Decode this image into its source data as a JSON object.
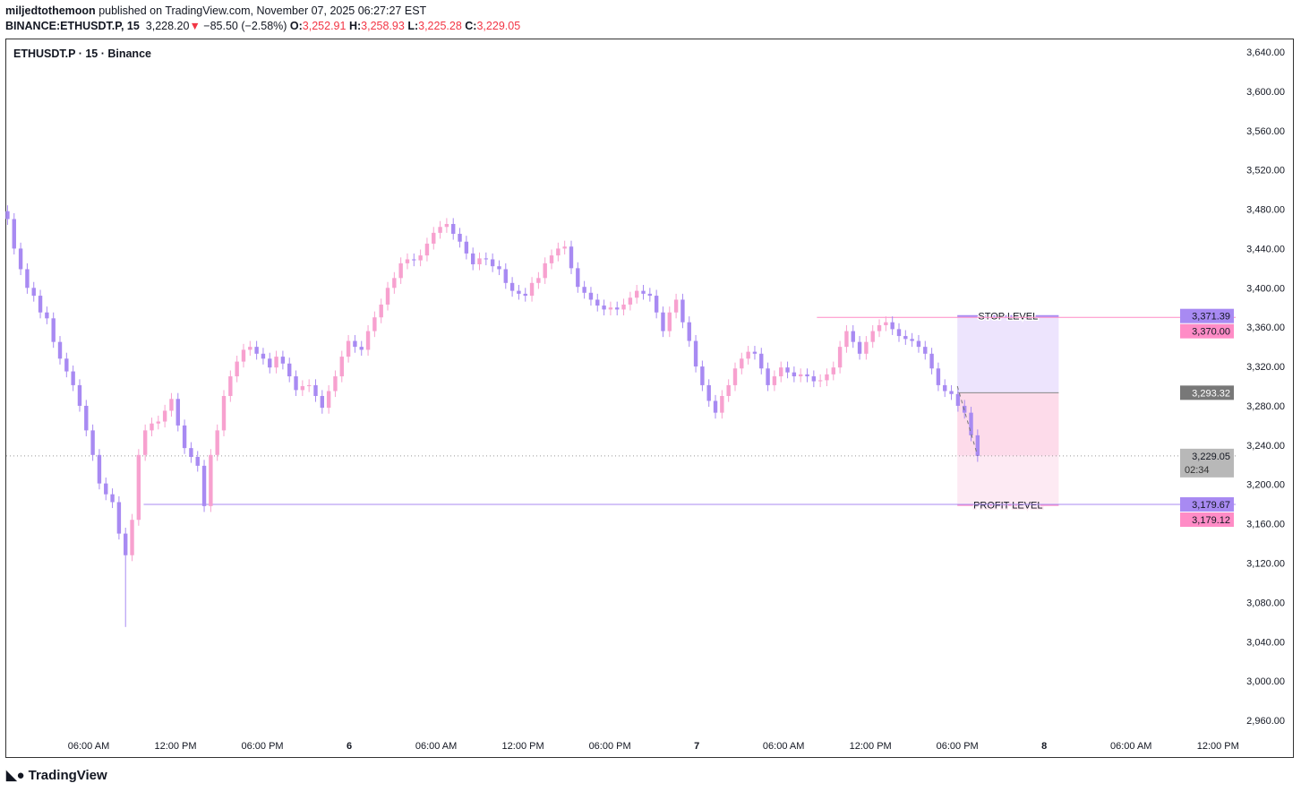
{
  "header": {
    "author": "miljedtothemoon",
    "published": "published on TradingView.com, November 07, 2025 06:27:27 EST",
    "symbol_full": "BINANCE:ETHUSDT.P, 15",
    "last": "3,228.20",
    "change": "−85.50 (−2.58%)",
    "o_label": "O:",
    "o": "3,252.91",
    "h_label": "H:",
    "h": "3,258.93",
    "l_label": "L:",
    "l": "3,225.28",
    "c_label": "C:",
    "c": "3,229.05"
  },
  "legend": "ETHUSDT.P · 15 · Binance",
  "brand": "TradingView",
  "colors": {
    "up": "#f7a1cf",
    "down": "#a88af2",
    "stop": "#ff8cc6",
    "target": "#a88af2"
  },
  "chart_data": {
    "type": "candlestick",
    "ylim": [
      2940,
      3660
    ],
    "y_ticks": [
      "3,640.00",
      "3,600.00",
      "3,560.00",
      "3,520.00",
      "3,480.00",
      "3,440.00",
      "3,400.00",
      "3,360.00",
      "3,320.00",
      "3,280.00",
      "3,240.00",
      "3,200.00",
      "3,160.00",
      "3,120.00",
      "3,080.00",
      "3,040.00",
      "3,000.00",
      "2,960.00"
    ],
    "x_ticks": [
      {
        "h": 0,
        "label": "06:00 AM"
      },
      {
        "h": 6,
        "label": "12:00 PM"
      },
      {
        "h": 12,
        "label": "06:00 PM"
      },
      {
        "h": 18,
        "label": "6"
      },
      {
        "h": 24,
        "label": "06:00 AM"
      },
      {
        "h": 30,
        "label": "12:00 PM"
      },
      {
        "h": 36,
        "label": "06:00 PM"
      },
      {
        "h": 42,
        "label": "7"
      },
      {
        "h": 48,
        "label": "06:00 AM"
      },
      {
        "h": 54,
        "label": "12:00 PM"
      },
      {
        "h": 60,
        "label": "06:00 PM"
      },
      {
        "h": 66,
        "label": "8"
      },
      {
        "h": 72,
        "label": "06:00 AM"
      },
      {
        "h": 78,
        "label": "12:00 PM"
      }
    ],
    "start_hour": -5.6,
    "end_hour": 61.4,
    "closes": [
      3470,
      3440,
      3419,
      3400,
      3392,
      3375,
      3369,
      3345,
      3328,
      3315,
      3301,
      3280,
      3255,
      3230,
      3201,
      3190,
      3182,
      3150,
      3128,
      3164,
      3230,
      3255,
      3262,
      3264,
      3275,
      3287,
      3260,
      3237,
      3228,
      3219,
      3178,
      3230,
      3255,
      3290,
      3310,
      3325,
      3337,
      3340,
      3333,
      3328,
      3319,
      3330,
      3323,
      3310,
      3296,
      3300,
      3301,
      3290,
      3278,
      3295,
      3310,
      3330,
      3346,
      3340,
      3337,
      3356,
      3370,
      3383,
      3400,
      3410,
      3425,
      3429,
      3428,
      3433,
      3445,
      3456,
      3462,
      3465,
      3455,
      3447,
      3435,
      3424,
      3430,
      3429,
      3422,
      3419,
      3405,
      3397,
      3394,
      3392,
      3405,
      3410,
      3425,
      3433,
      3440,
      3442,
      3420,
      3401,
      3395,
      3388,
      3382,
      3378,
      3380,
      3378,
      3383,
      3390,
      3397,
      3394,
      3392,
      3375,
      3356,
      3375,
      3388,
      3365,
      3346,
      3320,
      3301,
      3285,
      3273,
      3290,
      3301,
      3318,
      3328,
      3335,
      3333,
      3318,
      3301,
      3310,
      3319,
      3314,
      3310,
      3312,
      3310,
      3305,
      3306,
      3312,
      3319,
      3340,
      3356,
      3345,
      3333,
      3345,
      3356,
      3362,
      3365,
      3358,
      3351,
      3348,
      3346,
      3340,
      3333,
      3318,
      3301,
      3295,
      3292,
      3280,
      3273,
      3250,
      3229
    ],
    "lows_spike": {
      "index": 18,
      "low": 3055
    },
    "horizontal_lines": [
      {
        "price": 3370.0,
        "label": "3,370.00",
        "color": "stop",
        "from_hour": 50.3
      },
      {
        "price": 3179.67,
        "label": "3,179.67",
        "color": "target",
        "from_hour": 3.8
      }
    ],
    "position": {
      "from_hour": 60.0,
      "to_hour": 67.0,
      "stop": 3371.39,
      "entry": 3293.32,
      "target": 3179.12,
      "stop_label": "STOP LEVEL",
      "profit_label": "PROFIT LEVEL"
    },
    "price_labels": [
      {
        "price": 3371.39,
        "text": "3,371.39",
        "kind": "down"
      },
      {
        "price": 3370.0,
        "text": "3,370.00",
        "kind": "stop"
      },
      {
        "price": 3293.32,
        "text": "3,293.32",
        "kind": "entry"
      },
      {
        "price": 3229.05,
        "text": "3,229.05",
        "sub": "02:34",
        "kind": "last"
      },
      {
        "price": 3179.67,
        "text": "3,179.67",
        "kind": "down"
      },
      {
        "price": 3179.12,
        "text": "3,179.12",
        "kind": "stop"
      }
    ],
    "last_price": 3229.05
  }
}
